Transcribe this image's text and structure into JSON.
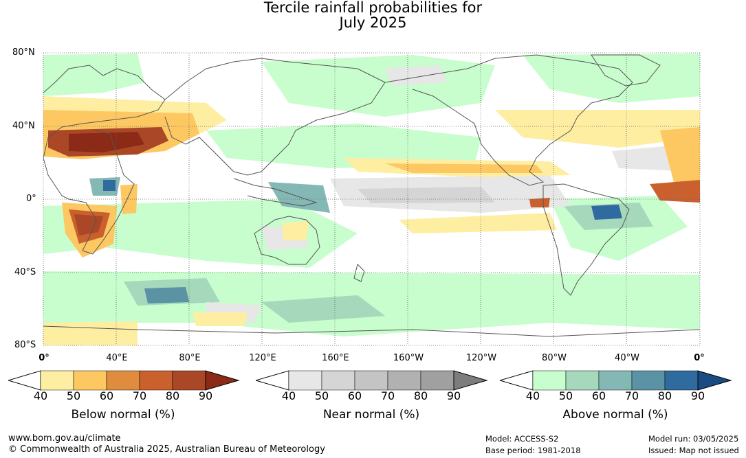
{
  "title_line1": "Tercile rainfall probabilities for",
  "title_line2": "July 2025",
  "lat_labels": [
    "80°N",
    "40°N",
    "0°",
    "40°S",
    "80°S"
  ],
  "lon_labels": [
    "0°",
    "40°E",
    "80°E",
    "120°E",
    "160°E",
    "160°W",
    "120°W",
    "80°W",
    "40°W",
    "0°"
  ],
  "legends": [
    {
      "title": "Below normal (%)",
      "ticks": [
        "40",
        "50",
        "60",
        "70",
        "80",
        "90"
      ],
      "colors": [
        "#ffffff",
        "#fdeea2",
        "#fdc862",
        "#df8c3e",
        "#c9602e",
        "#a94726",
        "#8b2a16"
      ]
    },
    {
      "title": "Near normal (%)",
      "ticks": [
        "40",
        "50",
        "60",
        "70",
        "80",
        "90"
      ],
      "colors": [
        "#ffffff",
        "#e7e7e7",
        "#d5d5d5",
        "#c4c4c4",
        "#b1b1b1",
        "#a0a0a0",
        "#7d7d7d"
      ]
    },
    {
      "title": "Above normal (%)",
      "ticks": [
        "40",
        "50",
        "60",
        "70",
        "80",
        "90"
      ],
      "colors": [
        "#ffffff",
        "#c8fdcd",
        "#a6d8bb",
        "#83b8b5",
        "#5b93a5",
        "#2f6b9f",
        "#1a4b82"
      ]
    }
  ],
  "footer": {
    "website": "www.bom.gov.au/climate",
    "copyright": "© Commonwealth of Australia 2025, Australian Bureau of Meteorology",
    "model": "Model: ACCESS-S2",
    "base_period": "Base period: 1981-2018",
    "model_run": "Model run: 03/05/2025",
    "issued": "Issued: Map not issued"
  },
  "colors": {
    "land_outline": "#555555",
    "grid": "#666666",
    "water": "#ffffff"
  }
}
